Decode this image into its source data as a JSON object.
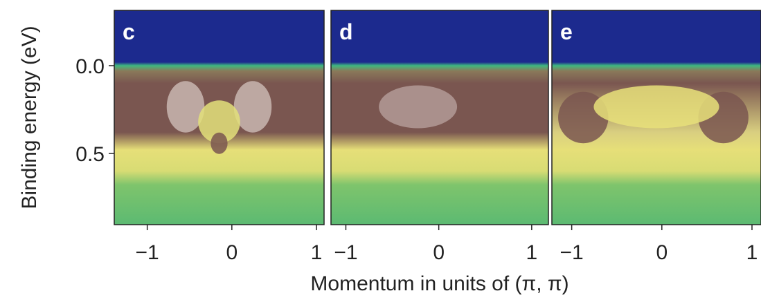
{
  "chart_data": [
    {
      "type": "heatmap",
      "panel_label": "c",
      "ylabel": "Binding energy (eV)",
      "xlim": [
        -1.39,
        1.09
      ],
      "xticks": [
        {
          "value": -1,
          "label": "−1"
        },
        0,
        1
      ],
      "ylim": [
        -0.315,
        0.906
      ],
      "yticks": [
        {
          "value": 0,
          "label": "0.0"
        },
        0.5
      ]
    },
    {
      "type": "heatmap",
      "panel_label": "d",
      "xlabel": "Momentum in units of (π, π)",
      "xlim": [
        -1.16,
        1.18
      ],
      "xticks": [
        {
          "value": -1,
          "label": "−1"
        },
        0,
        1
      ],
      "ylim": [
        -0.315,
        0.906
      ]
    },
    {
      "type": "heatmap",
      "panel_label": "e",
      "xlim": [
        -1.22,
        1.1
      ],
      "xticks": [
        {
          "value": -1,
          "label": "−1"
        },
        0,
        1
      ],
      "ylim": [
        -0.315,
        0.906
      ]
    }
  ]
}
